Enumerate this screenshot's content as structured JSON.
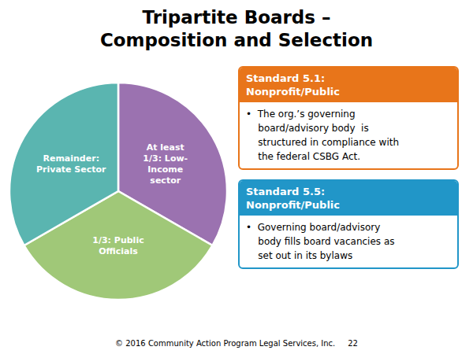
{
  "chart_data": {
    "type": "pie",
    "title": "Tripartite Boards –\nComposition and Selection",
    "categories": [
      "At least\n1/3: Low-\nIncome\nsector",
      "1/3: Public\nOfficials",
      "Remainder:\nPrivate Sector"
    ],
    "values": [
      33.33,
      33.34,
      33.33
    ],
    "colors": [
      "#9b72b0",
      "#a0c878",
      "#5ab5b0"
    ],
    "annotations": [
      {
        "text": "Standard 5.1:\nNonprofit/Public",
        "color": "#e8751a"
      },
      {
        "text": "•  The org.’s governing\n    board/advisory body  is\n    structured in compliance with\n    the federal CSBG Act.",
        "color": "#e8751a"
      },
      {
        "text": "Standard 5.5:\nNonprofit/Public",
        "color": "#2196c8"
      },
      {
        "text": "•  Governing board/advisory\n    body fills board vacancies as\n    set out in its bylaws",
        "color": "#2196c8"
      },
      {
        "text": "© 2016 Community Action Program Legal Services, Inc.     22"
      }
    ]
  }
}
